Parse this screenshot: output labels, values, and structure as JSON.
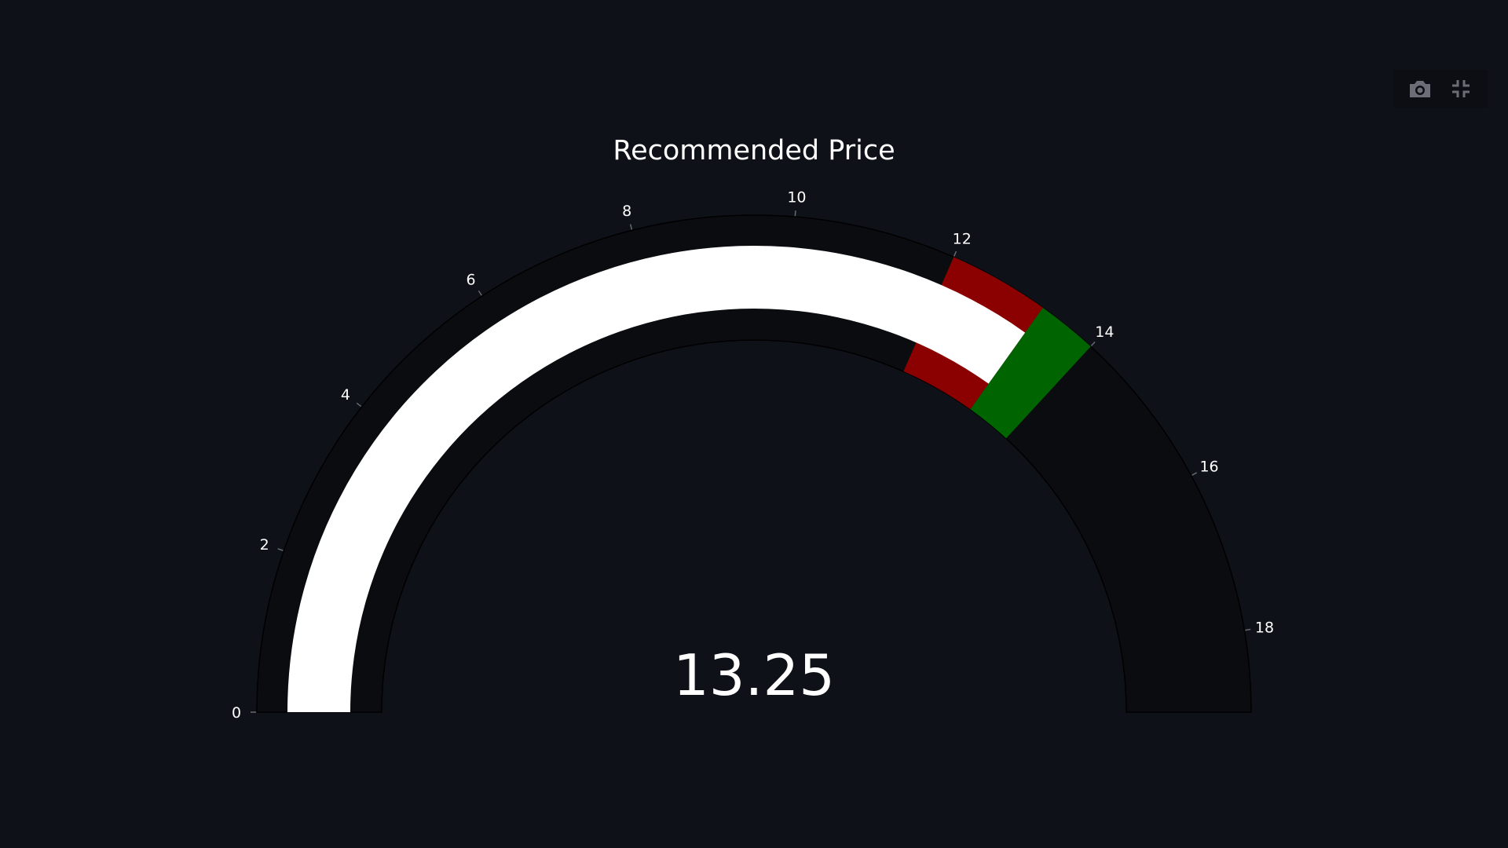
{
  "chart_data": {
    "type": "gauge",
    "title": "Recommended Price",
    "value": 13.25,
    "value_label": "13.25",
    "range": [
      0,
      19
    ],
    "ticks": [
      0,
      2,
      4,
      6,
      8,
      10,
      12,
      14,
      16,
      18
    ],
    "tick_labels": [
      "0",
      "2",
      "4",
      "6",
      "8",
      "10",
      "12",
      "14",
      "16",
      "18"
    ],
    "steps": [
      {
        "range": [
          12,
          13.25
        ],
        "color": "#8b0000"
      },
      {
        "range": [
          13.25,
          14
        ],
        "color": "#006400"
      }
    ],
    "bar_color": "#ffffff",
    "background_color": "#0b0c10",
    "text_color": "#ffffff"
  },
  "modebar": {
    "buttons": [
      {
        "name": "download-plot-button",
        "icon": "camera-icon"
      },
      {
        "name": "exit-fullscreen-button",
        "icon": "compress-icon"
      }
    ]
  }
}
